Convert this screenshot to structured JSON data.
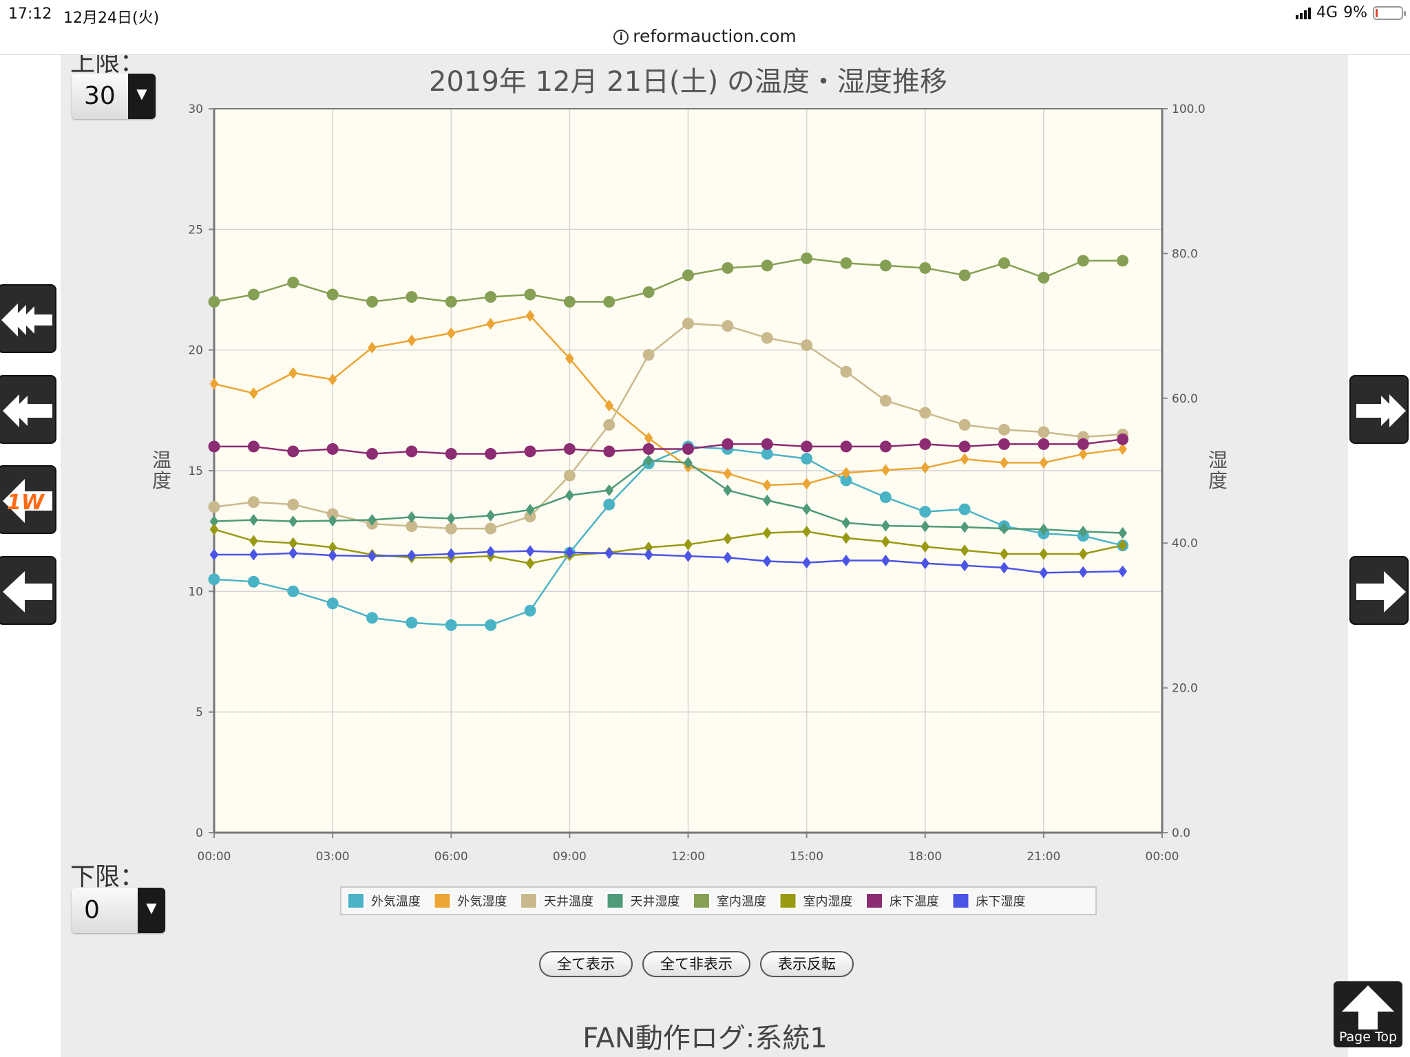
{
  "status_bar": {
    "time": "17:12",
    "date": "12月24日(火)",
    "network": "4G",
    "battery": "9%",
    "battery_level": 0.09
  },
  "browser": {
    "url": "reformauction.com"
  },
  "upper_limit": {
    "label": "上限：",
    "value": "30"
  },
  "lower_limit": {
    "label": "下限：",
    "value": "0"
  },
  "nav": {
    "left": [
      "triple-left-arrow-icon",
      "double-left-arrow-icon",
      "one-week-back-icon",
      "left-arrow-icon"
    ],
    "right": [
      "double-right-arrow-icon",
      "right-arrow-icon"
    ],
    "one_week_label": "1W"
  },
  "controls": {
    "show_all": "全て表示",
    "hide_all": "全て非表示",
    "invert": "表示反転"
  },
  "section_title": "FAN動作ログ:系統1",
  "page_top": "Page Top",
  "chart_data": {
    "type": "line",
    "title": "2019年 12月 21日(土) の温度・湿度推移",
    "ylabel_left": "温度",
    "ylabel_right": "湿度",
    "ylim_left": [
      0,
      30
    ],
    "ylim_right": [
      0,
      100
    ],
    "x": [
      "00:00",
      "01:00",
      "02:00",
      "03:00",
      "04:00",
      "05:00",
      "06:00",
      "07:00",
      "08:00",
      "09:00",
      "10:00",
      "11:00",
      "12:00",
      "13:00",
      "14:00",
      "15:00",
      "16:00",
      "17:00",
      "18:00",
      "19:00",
      "20:00",
      "21:00",
      "22:00",
      "23:00"
    ],
    "x_ticks": [
      "00:00",
      "03:00",
      "06:00",
      "09:00",
      "12:00",
      "15:00",
      "18:00",
      "21:00",
      "00:00"
    ],
    "yticks_left": [
      "0",
      "5",
      "10",
      "15",
      "20",
      "25",
      "30"
    ],
    "yticks_right": [
      "0.0",
      "20.0",
      "40.0",
      "60.0",
      "80.0",
      "100.0"
    ],
    "grid": true,
    "legend_position": "bottom",
    "series": [
      {
        "name": "外気温度",
        "axis": "left",
        "marker": "circle",
        "color": "#4bb3c6",
        "values": [
          10.5,
          10.4,
          10.0,
          9.5,
          8.9,
          8.7,
          8.6,
          8.6,
          9.2,
          11.6,
          13.6,
          15.3,
          16.0,
          15.9,
          15.7,
          15.5,
          14.6,
          13.9,
          13.3,
          13.4,
          12.7,
          12.4,
          12.3,
          11.9
        ]
      },
      {
        "name": "外気湿度",
        "axis": "right",
        "marker": "diamond",
        "color": "#eca534",
        "values": [
          62.0,
          60.7,
          63.5,
          62.6,
          67.0,
          68.0,
          69.0,
          70.3,
          71.4,
          65.5,
          59.0,
          54.5,
          50.5,
          49.6,
          48.0,
          48.2,
          49.7,
          50.1,
          50.4,
          51.6,
          51.1,
          51.1,
          52.3,
          53.0
        ]
      },
      {
        "name": "天井温度",
        "axis": "left",
        "marker": "circle",
        "color": "#c9b98d",
        "values": [
          13.5,
          13.7,
          13.6,
          13.2,
          12.8,
          12.7,
          12.6,
          12.6,
          13.1,
          14.8,
          16.9,
          19.8,
          21.1,
          21.0,
          20.5,
          20.2,
          19.1,
          17.9,
          17.4,
          16.9,
          16.7,
          16.6,
          16.4,
          16.5
        ]
      },
      {
        "name": "天井湿度",
        "axis": "right",
        "marker": "diamond",
        "color": "#4e9a79",
        "values": [
          43.0,
          43.2,
          43.0,
          43.1,
          43.2,
          43.6,
          43.4,
          43.8,
          44.6,
          46.6,
          47.3,
          51.4,
          51.1,
          47.3,
          45.9,
          44.7,
          42.8,
          42.4,
          42.3,
          42.2,
          42.0,
          41.9,
          41.6,
          41.4
        ]
      },
      {
        "name": "室内温度",
        "axis": "left",
        "marker": "circle",
        "color": "#85a054",
        "values": [
          22.0,
          22.3,
          22.8,
          22.3,
          22.0,
          22.2,
          22.0,
          22.2,
          22.3,
          22.0,
          22.0,
          22.4,
          23.1,
          23.4,
          23.5,
          23.8,
          23.6,
          23.5,
          23.4,
          23.1,
          23.6,
          23.0,
          23.7,
          23.7
        ]
      },
      {
        "name": "室内湿度",
        "axis": "right",
        "marker": "diamond",
        "color": "#999a12",
        "values": [
          41.9,
          40.3,
          40.0,
          39.4,
          38.4,
          38.0,
          38.0,
          38.2,
          37.2,
          38.3,
          38.7,
          39.4,
          39.8,
          40.6,
          41.4,
          41.6,
          40.7,
          40.2,
          39.5,
          39.0,
          38.5,
          38.5,
          38.5,
          39.7
        ]
      },
      {
        "name": "床下温度",
        "axis": "left",
        "marker": "circle",
        "color": "#8c2c72",
        "values": [
          16.0,
          16.0,
          15.8,
          15.9,
          15.7,
          15.8,
          15.7,
          15.7,
          15.8,
          15.9,
          15.8,
          15.9,
          15.9,
          16.1,
          16.1,
          16.0,
          16.0,
          16.0,
          16.1,
          16.0,
          16.1,
          16.1,
          16.1,
          16.3
        ]
      },
      {
        "name": "床下湿度",
        "axis": "right",
        "marker": "diamond",
        "color": "#4b55e5",
        "values": [
          38.4,
          38.4,
          38.6,
          38.3,
          38.2,
          38.3,
          38.5,
          38.8,
          38.9,
          38.7,
          38.6,
          38.4,
          38.2,
          38.0,
          37.5,
          37.3,
          37.6,
          37.6,
          37.2,
          36.9,
          36.6,
          35.9,
          36.0,
          36.1
        ]
      }
    ]
  }
}
